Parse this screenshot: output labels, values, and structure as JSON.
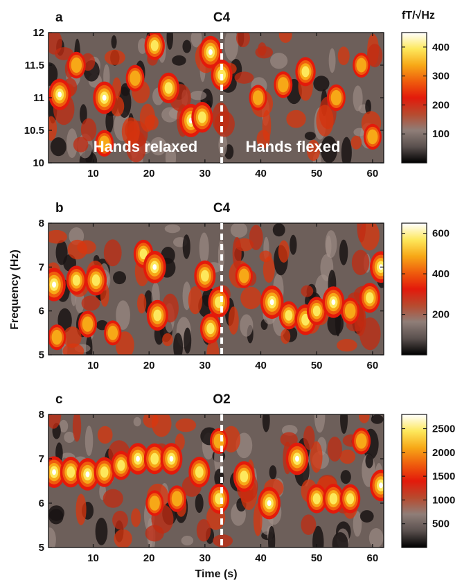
{
  "chart_data": {
    "type": "heatmap",
    "shared_axes": {
      "xlabel": "Time (s)",
      "ylabel": "Frequency (Hz)",
      "xlim": [
        2,
        62
      ],
      "xticks": [
        "10",
        "20",
        "30",
        "40",
        "50",
        "60"
      ]
    },
    "colorbar_unit": "fT/√Hz",
    "colormap": [
      "#000000",
      "#5a504e",
      "#8f7e78",
      "#b84a2e",
      "#e31a0b",
      "#ef5d0d",
      "#f7a817",
      "#fde85c",
      "#ffffff"
    ],
    "event_marker": {
      "time": 33,
      "style": "white-dashed"
    },
    "panels": [
      {
        "letter": "a",
        "channel": "C4",
        "ylim": [
          10,
          12
        ],
        "yticks": [
          "10",
          "10.5",
          "11",
          "11.5",
          "12"
        ],
        "colorbar_ticks": [
          "100",
          "200",
          "300",
          "400"
        ],
        "colorbar_max": 450,
        "annotations": [
          "Hands relaxed",
          "Hands flexed"
        ],
        "blobs": [
          {
            "t": 4,
            "f": 11.05,
            "amp": 0.9
          },
          {
            "t": 7,
            "f": 11.5,
            "amp": 0.6
          },
          {
            "t": 12,
            "f": 11.0,
            "amp": 0.95
          },
          {
            "t": 12,
            "f": 10.3,
            "amp": 0.6
          },
          {
            "t": 17.5,
            "f": 11.3,
            "amp": 0.6
          },
          {
            "t": 21,
            "f": 11.8,
            "amp": 0.75
          },
          {
            "t": 23.5,
            "f": 11.15,
            "amp": 0.85
          },
          {
            "t": 27.5,
            "f": 10.65,
            "amp": 1.0
          },
          {
            "t": 29.5,
            "f": 10.7,
            "amp": 0.85
          },
          {
            "t": 31,
            "f": 11.7,
            "amp": 0.95
          },
          {
            "t": 33,
            "f": 11.35,
            "amp": 0.85
          },
          {
            "t": 39.5,
            "f": 11.0,
            "amp": 0.55
          },
          {
            "t": 44,
            "f": 11.2,
            "amp": 0.6
          },
          {
            "t": 48,
            "f": 11.4,
            "amp": 0.75
          },
          {
            "t": 53.5,
            "f": 11.0,
            "amp": 0.6
          },
          {
            "t": 58,
            "f": 11.5,
            "amp": 0.5
          },
          {
            "t": 60,
            "f": 10.4,
            "amp": 0.55
          }
        ]
      },
      {
        "letter": "b",
        "channel": "C4",
        "ylim": [
          5,
          8
        ],
        "yticks": [
          "5",
          "6",
          "7",
          "8"
        ],
        "colorbar_ticks": [
          "200",
          "400",
          "600"
        ],
        "colorbar_max": 650,
        "blobs": [
          {
            "t": 3,
            "f": 6.6,
            "amp": 1.0
          },
          {
            "t": 7,
            "f": 6.7,
            "amp": 0.75
          },
          {
            "t": 10.5,
            "f": 6.7,
            "amp": 0.85
          },
          {
            "t": 3.5,
            "f": 5.4,
            "amp": 0.55
          },
          {
            "t": 9,
            "f": 5.7,
            "amp": 0.6
          },
          {
            "t": 13.5,
            "f": 5.5,
            "amp": 0.5
          },
          {
            "t": 19,
            "f": 7.3,
            "amp": 0.7
          },
          {
            "t": 21,
            "f": 7.0,
            "amp": 0.95
          },
          {
            "t": 21.5,
            "f": 5.9,
            "amp": 0.85
          },
          {
            "t": 30,
            "f": 6.8,
            "amp": 0.85
          },
          {
            "t": 31,
            "f": 5.6,
            "amp": 0.8
          },
          {
            "t": 32.5,
            "f": 6.2,
            "amp": 0.85
          },
          {
            "t": 42,
            "f": 6.2,
            "amp": 1.0
          },
          {
            "t": 45,
            "f": 5.9,
            "amp": 0.7
          },
          {
            "t": 48,
            "f": 5.8,
            "amp": 0.85
          },
          {
            "t": 50,
            "f": 6.0,
            "amp": 0.7
          },
          {
            "t": 53,
            "f": 6.2,
            "amp": 0.9
          },
          {
            "t": 56,
            "f": 6.0,
            "amp": 0.6
          },
          {
            "t": 59.5,
            "f": 6.3,
            "amp": 0.8
          },
          {
            "t": 61.5,
            "f": 7.0,
            "amp": 0.9
          },
          {
            "t": 37,
            "f": 6.8,
            "amp": 0.5
          }
        ]
      },
      {
        "letter": "c",
        "channel": "O2",
        "ylim": [
          5,
          8
        ],
        "yticks": [
          "5",
          "6",
          "7",
          "8"
        ],
        "colorbar_ticks": [
          "500",
          "1000",
          "1500",
          "2000",
          "2500"
        ],
        "colorbar_max": 2800,
        "blobs": [
          {
            "t": 3,
            "f": 6.7,
            "amp": 0.9
          },
          {
            "t": 6,
            "f": 6.7,
            "amp": 0.85
          },
          {
            "t": 9,
            "f": 6.65,
            "amp": 0.95
          },
          {
            "t": 12,
            "f": 6.7,
            "amp": 0.8
          },
          {
            "t": 15,
            "f": 6.85,
            "amp": 0.75
          },
          {
            "t": 18,
            "f": 7.0,
            "amp": 0.9
          },
          {
            "t": 21,
            "f": 7.0,
            "amp": 0.85
          },
          {
            "t": 24,
            "f": 7.0,
            "amp": 0.9
          },
          {
            "t": 29,
            "f": 6.7,
            "amp": 0.85
          },
          {
            "t": 21,
            "f": 6.0,
            "amp": 0.55
          },
          {
            "t": 25,
            "f": 6.1,
            "amp": 0.6
          },
          {
            "t": 32.5,
            "f": 6.1,
            "amp": 0.8
          },
          {
            "t": 32.5,
            "f": 7.4,
            "amp": 0.55
          },
          {
            "t": 37,
            "f": 6.6,
            "amp": 0.85
          },
          {
            "t": 41.5,
            "f": 6.0,
            "amp": 0.95
          },
          {
            "t": 46.5,
            "f": 7.0,
            "amp": 0.95
          },
          {
            "t": 50,
            "f": 6.1,
            "amp": 0.75
          },
          {
            "t": 53,
            "f": 6.1,
            "amp": 0.8
          },
          {
            "t": 56,
            "f": 6.1,
            "amp": 0.75
          },
          {
            "t": 58,
            "f": 7.4,
            "amp": 0.6
          },
          {
            "t": 61.5,
            "f": 6.4,
            "amp": 0.9
          }
        ]
      }
    ]
  }
}
